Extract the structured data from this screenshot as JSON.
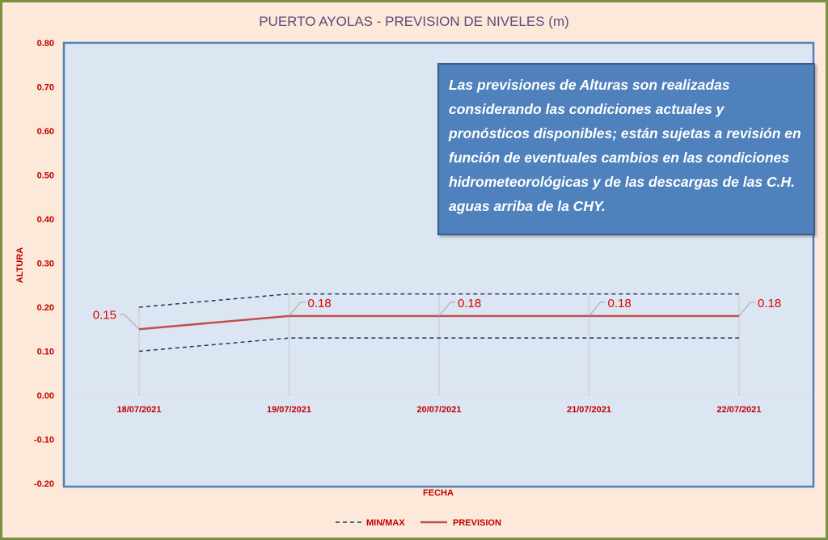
{
  "chart_data": {
    "type": "line",
    "title": "PUERTO AYOLAS - PREVISION DE NIVELES (m)",
    "xlabel": "FECHA",
    "ylabel": "ALTURA",
    "ylim": [
      -0.2,
      0.8
    ],
    "yticks": [
      "0.80",
      "0.70",
      "0.60",
      "0.50",
      "0.40",
      "0.30",
      "0.20",
      "0.10",
      "0.00",
      "-0.10",
      "-0.20"
    ],
    "categories": [
      "18/07/2021",
      "19/07/2021",
      "20/07/2021",
      "21/07/2021",
      "22/07/2021"
    ],
    "series": [
      {
        "name": "PREVISION",
        "values": [
          0.15,
          0.18,
          0.18,
          0.18,
          0.18
        ],
        "labels": [
          "0.15",
          "0.18",
          "0.18",
          "0.18",
          "0.18"
        ],
        "color": "#C0504D"
      },
      {
        "name": "MAX",
        "values": [
          0.2,
          0.23,
          0.23,
          0.23,
          0.23
        ],
        "color": "#1F3864"
      },
      {
        "name": "MIN",
        "values": [
          0.1,
          0.13,
          0.13,
          0.13,
          0.13
        ],
        "color": "#1F3864"
      }
    ],
    "legend": [
      {
        "label": "MIN/MAX",
        "style": "dashed"
      },
      {
        "label": "PREVISION",
        "style": "solid"
      }
    ],
    "legend_position": "bottom",
    "note": "Las previsiones de Alturas son realizadas considerando las condiciones actuales y pronósticos disponibles;  están sujetas a revisión en función de eventuales cambios en las condiciones hidrometeorológicas y de las descargas de las C.H. aguas arriba de la CHY."
  }
}
